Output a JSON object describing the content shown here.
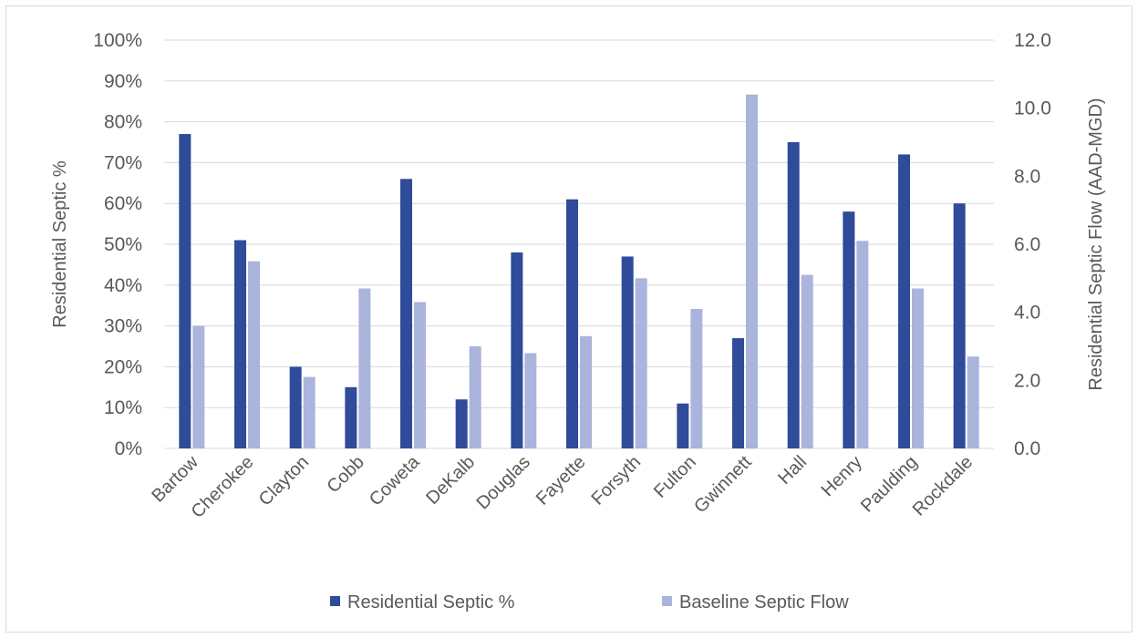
{
  "chart_data": {
    "type": "bar",
    "categories": [
      "Bartow",
      "Cherokee",
      "Clayton",
      "Cobb",
      "Coweta",
      "DeKalb",
      "Douglas",
      "Fayette",
      "Forsyth",
      "Fulton",
      "Gwinnett",
      "Hall",
      "Henry",
      "Paulding",
      "Rockdale"
    ],
    "series": [
      {
        "name": "Residential Septic %",
        "axis": "left",
        "color": "#2f4b9a",
        "values": [
          77,
          51,
          20,
          15,
          66,
          12,
          48,
          61,
          47,
          11,
          27,
          75,
          58,
          72,
          60
        ]
      },
      {
        "name": "Baseline Septic Flow",
        "axis": "right",
        "color": "#aab4dc",
        "values": [
          3.6,
          5.5,
          2.1,
          4.7,
          4.3,
          3.0,
          2.8,
          3.3,
          5.0,
          4.1,
          10.4,
          5.1,
          6.1,
          4.7,
          2.7
        ]
      }
    ],
    "y_left": {
      "label": "Residential Septic %",
      "min": 0,
      "max": 100,
      "ticks": [
        "0%",
        "10%",
        "20%",
        "30%",
        "40%",
        "50%",
        "60%",
        "70%",
        "80%",
        "90%",
        "100%"
      ]
    },
    "y_right": {
      "label": "Residential Septic Flow (AAD-MGD)",
      "min": 0,
      "max": 12,
      "ticks": [
        "0.0",
        "2.0",
        "4.0",
        "6.0",
        "8.0",
        "10.0",
        "12.0"
      ]
    },
    "grid": true,
    "legend": "bottom"
  }
}
